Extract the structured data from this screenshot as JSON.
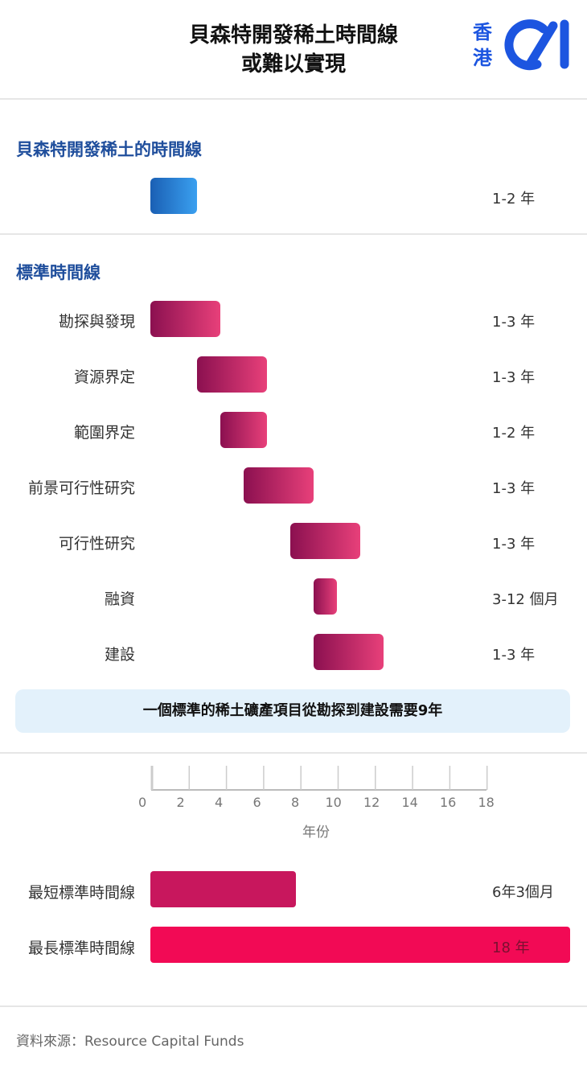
{
  "header": {
    "title_line1": "貝森特開發稀土時間線",
    "title_line2": "或難以實現",
    "logo_text": "香港01",
    "logo_chars": [
      "香",
      "港"
    ]
  },
  "colors": {
    "section_title": "#1f4e9c",
    "bessent_bar": "#2a86dc",
    "standard_bar": "#c22a66",
    "shortest_bar": "#c8175d",
    "longest_bar": "#f20a55",
    "note_bg": "#e3f1fb"
  },
  "chart_data": [
    {
      "type": "bar",
      "subtype": "gantt",
      "title": "貝森特開發稀土的時間線",
      "unit": "年",
      "tasks": [
        {
          "label": "",
          "start": 0,
          "end": 2,
          "duration_label": "1-2 年"
        }
      ]
    },
    {
      "type": "bar",
      "subtype": "gantt",
      "title": "標準時間線",
      "unit": "年",
      "tasks": [
        {
          "label": "勘探與發現",
          "start": 0,
          "end": 3,
          "duration_label": "1-3 年"
        },
        {
          "label": "資源界定",
          "start": 2,
          "end": 5,
          "duration_label": "1-3 年"
        },
        {
          "label": "範圍界定",
          "start": 3,
          "end": 5,
          "duration_label": "1-2 年"
        },
        {
          "label": "前景可行性研究",
          "start": 4,
          "end": 7,
          "duration_label": "1-3 年"
        },
        {
          "label": "可行性研究",
          "start": 6,
          "end": 9,
          "duration_label": "1-3 年"
        },
        {
          "label": "融資",
          "start": 7,
          "end": 8,
          "duration_label": "3-12 個月"
        },
        {
          "label": "建設",
          "start": 7,
          "end": 10,
          "duration_label": "1-3 年"
        }
      ]
    },
    {
      "type": "bar",
      "orientation": "horizontal",
      "xlabel": "年份",
      "xlim": [
        0,
        18
      ],
      "xticks": [
        0,
        2,
        4,
        6,
        8,
        10,
        12,
        14,
        16,
        18
      ],
      "categories": [
        "最短標準時間線",
        "最長標準時間線"
      ],
      "values": [
        6.25,
        18
      ],
      "value_labels": [
        "6年3個月",
        "18 年"
      ]
    }
  ],
  "note": "一個標準的稀土礦產項目從勘探到建設需要9年",
  "source": "資料來源：Resource Capital Funds"
}
